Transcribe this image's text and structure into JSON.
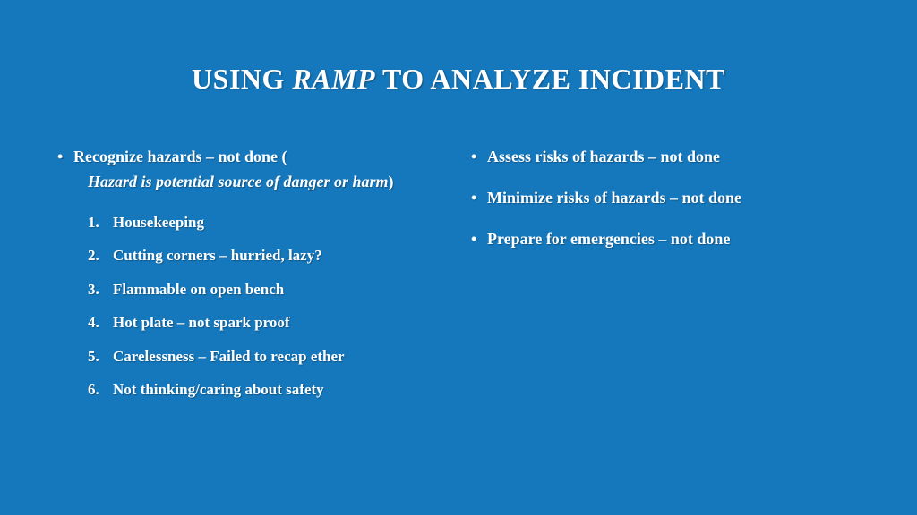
{
  "background_color": "#1578bd",
  "text_color": "#ffffff",
  "title": {
    "pre": "USING ",
    "emph": "RAMP",
    "post": " TO ANALYZE INCIDENT",
    "fontsize": 32
  },
  "left": {
    "bullet": {
      "lead": "Recognize hazards – not done (",
      "ital": "Hazard is potential source of danger or harm",
      "tail": ")"
    },
    "items": [
      "Housekeeping",
      "Cutting corners – hurried, lazy?",
      "Flammable on open bench",
      "Hot plate – not spark proof",
      "Carelessness – Failed to recap ether",
      "Not thinking/caring about safety"
    ]
  },
  "right": {
    "bullets": [
      "Assess risks of hazards – not done",
      "Minimize risks of hazards – not done",
      "Prepare for emergencies – not done"
    ]
  },
  "body_fontsize": 18,
  "sub_fontsize": 17
}
